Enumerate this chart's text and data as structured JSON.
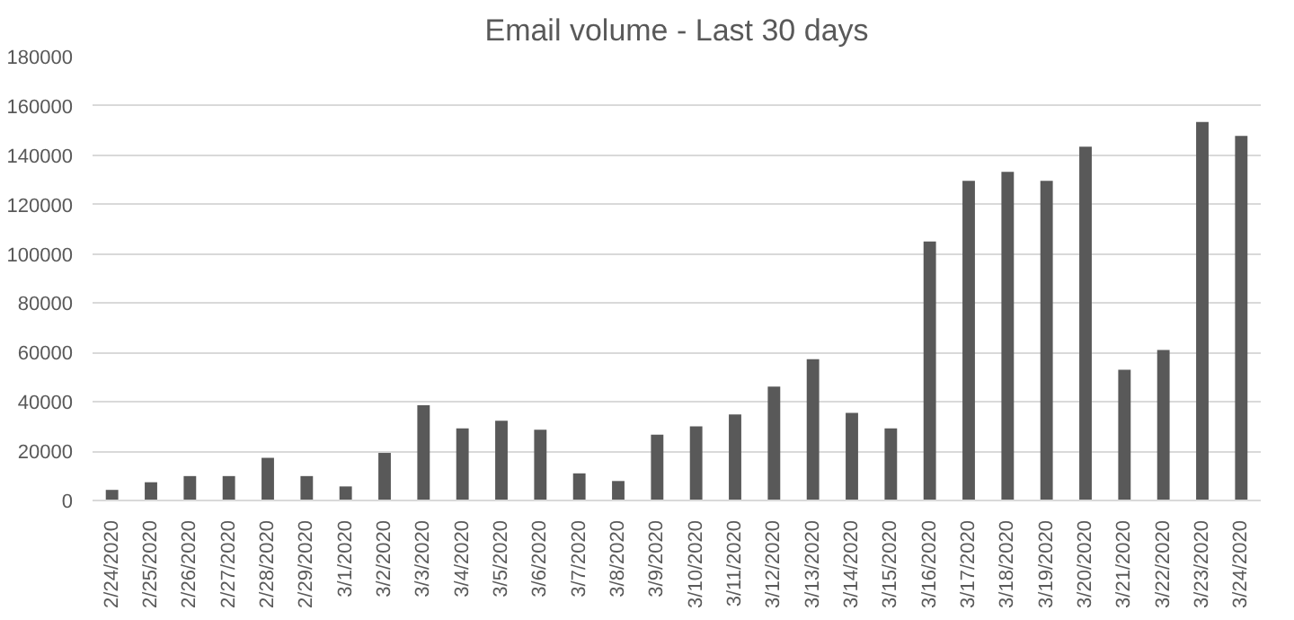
{
  "chart_data": {
    "type": "bar",
    "title": "Email volume - Last 30 days",
    "categories": [
      "2/24/2020",
      "2/25/2020",
      "2/26/2020",
      "2/27/2020",
      "2/28/2020",
      "2/29/2020",
      "3/1/2020",
      "3/2/2020",
      "3/3/2020",
      "3/4/2020",
      "3/5/2020",
      "3/6/2020",
      "3/7/2020",
      "3/8/2020",
      "3/9/2020",
      "3/10/2020",
      "3/11/2020",
      "3/12/2020",
      "3/13/2020",
      "3/14/2020",
      "3/15/2020",
      "3/16/2020",
      "3/17/2020",
      "3/18/2020",
      "3/19/2020",
      "3/20/2020",
      "3/21/2020",
      "3/22/2020",
      "3/23/2020",
      "3/24/2020"
    ],
    "values": [
      4300,
      7400,
      9900,
      9900,
      17300,
      9900,
      5700,
      19300,
      38600,
      29200,
      32300,
      28700,
      11000,
      7900,
      26700,
      30100,
      34900,
      46200,
      57300,
      35500,
      29200,
      105000,
      129600,
      133300,
      129600,
      143500,
      53000,
      61000,
      153500,
      147800
    ],
    "color": "#595959",
    "ylim": [
      0,
      180000
    ],
    "yticks": [
      0,
      20000,
      40000,
      60000,
      80000,
      100000,
      120000,
      140000,
      160000,
      180000
    ],
    "grid": "y"
  }
}
